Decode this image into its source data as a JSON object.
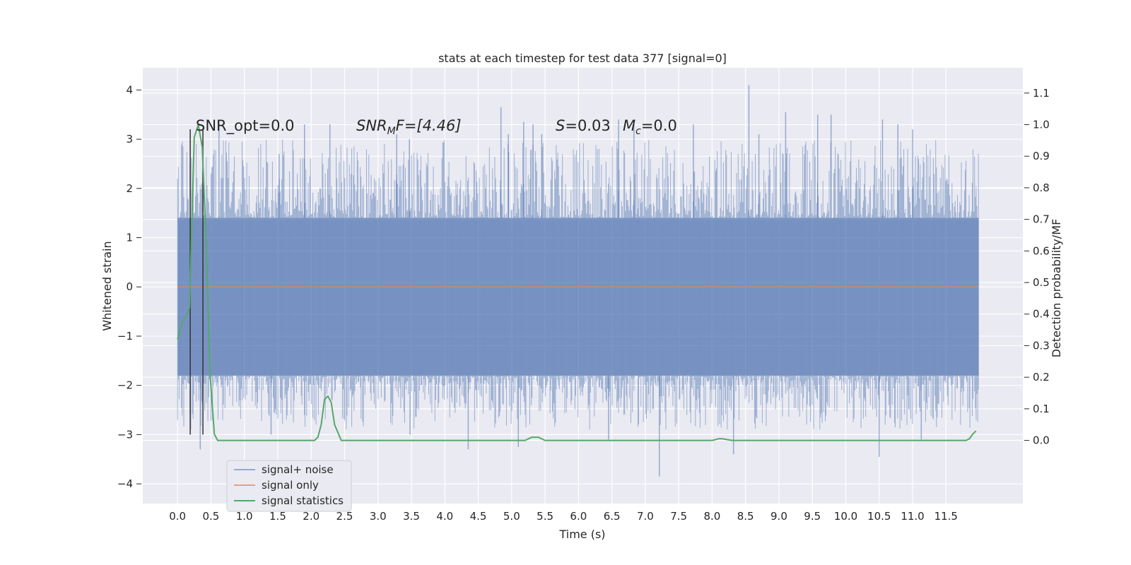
{
  "chart_data": {
    "type": "line",
    "title": "stats at each timestep for test data 377 [signal=0]",
    "xlabel": "Time (s)",
    "ylabel": "Whitened strain",
    "y2label": "Detection probability/MF",
    "xlim": [
      -0.52,
      12.65
    ],
    "ylim": [
      -4.4,
      4.45
    ],
    "y2lim": [
      -0.2,
      1.18
    ],
    "grid": true,
    "xticks": [
      "0.0",
      "0.5",
      "1.0",
      "1.5",
      "2.0",
      "2.5",
      "3.0",
      "3.5",
      "4.0",
      "4.5",
      "5.0",
      "5.5",
      "6.0",
      "6.5",
      "7.0",
      "7.5",
      "8.0",
      "8.5",
      "9.0",
      "9.5",
      "10.0",
      "10.5",
      "11.0",
      "11.5"
    ],
    "yticks": [
      "4",
      "3",
      "2",
      "1",
      "0",
      "−1",
      "−2",
      "−3",
      "−4"
    ],
    "y2ticks": [
      "1.1",
      "1.0",
      "0.9",
      "0.8",
      "0.7",
      "0.6",
      "0.5",
      "0.4",
      "0.3",
      "0.2",
      "0.1",
      "0.0"
    ],
    "annotations": {
      "snr_opt": "SNR_opt=0.0",
      "snr_mf_prefix": "SNR",
      "snr_mf_sub": "M",
      "snr_mf_rest": "F=[4.46]",
      "s_name": "S",
      "s_value": "=0.03",
      "mc_name": "M",
      "mc_sub": "c",
      "mc_value": "=0.0"
    },
    "legend": {
      "location": "lower-left",
      "entries": [
        {
          "label": "signal+ noise",
          "color": "#4c72b0"
        },
        {
          "label": "signal only",
          "color": "#dd8452"
        },
        {
          "label": "signal statistics",
          "color": "#55a868"
        }
      ]
    },
    "noise_band": {
      "name": "signal+ noise",
      "color": "#4c72b0",
      "x_range": [
        0.0,
        11.99
      ],
      "core_range": [
        -1.8,
        1.4
      ]
    },
    "noise_spikes": [
      {
        "x": 0.62,
        "y": 3.35
      },
      {
        "x": 1.52,
        "y": 2.7
      },
      {
        "x": 1.9,
        "y": 3.3
      },
      {
        "x": 2.28,
        "y": 3.3
      },
      {
        "x": 3.28,
        "y": 3.1
      },
      {
        "x": 3.47,
        "y": 3.0
      },
      {
        "x": 4.84,
        "y": 3.65
      },
      {
        "x": 4.95,
        "y": 3.1
      },
      {
        "x": 5.18,
        "y": 3.35
      },
      {
        "x": 5.32,
        "y": 3.3
      },
      {
        "x": 5.45,
        "y": 3.1
      },
      {
        "x": 6.6,
        "y": 3.4
      },
      {
        "x": 6.83,
        "y": 3.3
      },
      {
        "x": 7.72,
        "y": 3.3
      },
      {
        "x": 8.55,
        "y": 4.1
      },
      {
        "x": 8.7,
        "y": 3.1
      },
      {
        "x": 9.1,
        "y": 3.55
      },
      {
        "x": 9.58,
        "y": 3.5
      },
      {
        "x": 9.78,
        "y": 3.5
      },
      {
        "x": 10.55,
        "y": 3.4
      },
      {
        "x": 10.78,
        "y": 3.3
      },
      {
        "x": 11.0,
        "y": 3.2
      },
      {
        "x": 1.4,
        "y": -3.0
      },
      {
        "x": 3.48,
        "y": -3.0
      },
      {
        "x": 4.35,
        "y": -3.3
      },
      {
        "x": 5.1,
        "y": -3.25
      },
      {
        "x": 6.45,
        "y": -3.1
      },
      {
        "x": 7.21,
        "y": -3.85
      },
      {
        "x": 8.32,
        "y": -3.4
      },
      {
        "x": 10.5,
        "y": -3.45
      },
      {
        "x": 11.13,
        "y": -3.1
      },
      {
        "x": 0.34,
        "y": -3.3
      }
    ],
    "signal_only": {
      "name": "signal only",
      "color": "#dd8452",
      "x": [
        0.0,
        11.99
      ],
      "y": [
        0.0,
        0.0
      ]
    },
    "signal_statistics": {
      "name": "signal statistics",
      "color": "#55a868",
      "x": [
        0.0,
        0.06,
        0.12,
        0.18,
        0.25,
        0.31,
        0.37,
        0.43,
        0.49,
        0.55,
        0.6,
        0.9,
        1.5,
        1.9,
        2.0,
        2.05,
        2.1,
        2.15,
        2.2,
        2.25,
        2.3,
        2.35,
        2.45,
        2.6,
        3.5,
        4.5,
        5.0,
        5.2,
        5.3,
        5.35,
        5.4,
        5.5,
        5.7,
        6.5,
        7.5,
        8.0,
        8.1,
        8.15,
        8.3,
        9.0,
        10.0,
        11.0,
        11.5,
        11.8,
        11.85,
        11.9,
        11.95
      ],
      "y": [
        0.32,
        0.37,
        0.39,
        0.42,
        0.96,
        1.0,
        0.93,
        0.62,
        0.2,
        0.02,
        0.0,
        0.0,
        0.0,
        0.0,
        0.0,
        0.0,
        0.01,
        0.05,
        0.13,
        0.14,
        0.12,
        0.05,
        0.0,
        0.0,
        0.0,
        0.0,
        0.0,
        0.0,
        0.01,
        0.01,
        0.01,
        0.0,
        0.0,
        0.0,
        0.0,
        0.0,
        0.005,
        0.005,
        0.0,
        0.0,
        0.0,
        0.0,
        0.0,
        0.0,
        0.005,
        0.02,
        0.03
      ]
    },
    "marker_lines": {
      "color": "#333333",
      "x": [
        0.19,
        0.38
      ],
      "y_range": [
        -3.0,
        3.2
      ]
    }
  }
}
